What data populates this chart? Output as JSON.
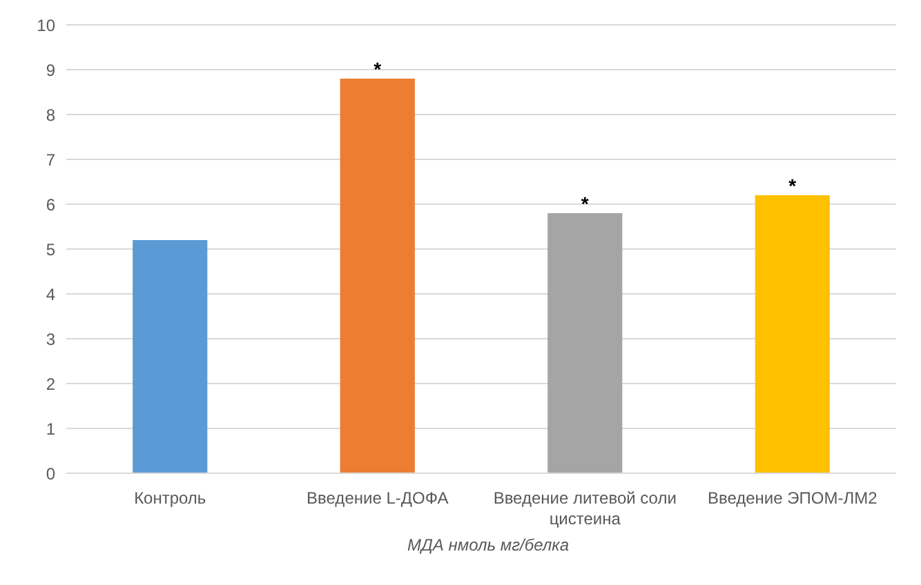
{
  "chart_data": {
    "type": "bar",
    "xlabel": "МДА нмоль мг/белка",
    "categories": [
      "Контроль",
      "Введение L-ДОФА",
      "Введение литевой соли цистеина",
      "Введение ЭПОМ-ЛМ2"
    ],
    "values": [
      5.2,
      8.8,
      5.8,
      6.2
    ],
    "colors": [
      "#5b9bd5",
      "#ed7d31",
      "#a5a5a5",
      "#ffc000"
    ],
    "ylim": [
      0,
      10
    ],
    "yticks": [
      0,
      1,
      2,
      3,
      4,
      5,
      6,
      7,
      8,
      9,
      10
    ],
    "grid": "y",
    "legend": false,
    "annotations": [
      {
        "text": "*",
        "x": "Введение L-ДОФА",
        "y": 8.8
      },
      {
        "text": "*",
        "x": "Введение литевой соли цистеина",
        "y": 5.8
      },
      {
        "text": "*",
        "x": "Введение ЭПОМ-ЛМ2",
        "y": 6.2
      }
    ]
  }
}
